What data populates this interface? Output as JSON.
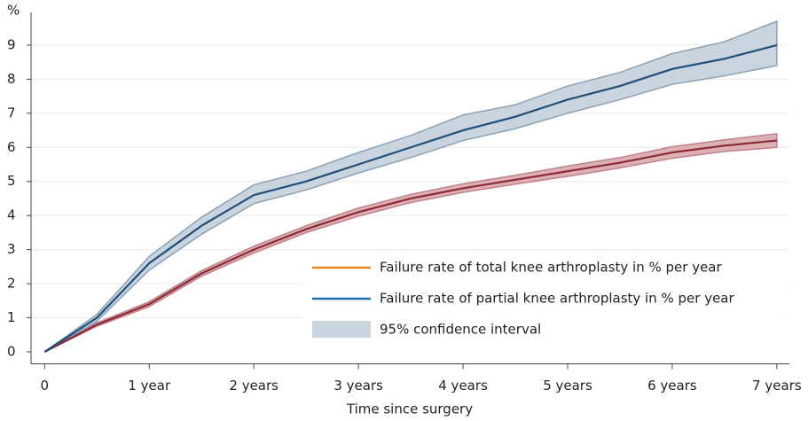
{
  "chart_data": {
    "type": "line",
    "y_label": "%",
    "x_label": "Time since surgery",
    "x": [
      0,
      0.5,
      1,
      1.5,
      2,
      2.5,
      3,
      3.5,
      4,
      4.5,
      5,
      5.5,
      6,
      6.5,
      7
    ],
    "series": [
      {
        "name": "Failure rate of total knee arthroplasty in % per year",
        "color": "#8b2a35",
        "legend_color": "#e08a1e",
        "band_color": "#dcb0b5",
        "band_edge": "#c08088",
        "values": [
          0,
          0.8,
          1.4,
          2.3,
          3.0,
          3.6,
          4.1,
          4.5,
          4.8,
          5.05,
          5.3,
          5.55,
          5.85,
          6.05,
          6.2
        ],
        "lower": [
          0,
          0.75,
          1.33,
          2.22,
          2.9,
          3.5,
          3.98,
          4.38,
          4.68,
          4.92,
          5.15,
          5.4,
          5.68,
          5.88,
          6.0
        ],
        "upper": [
          0,
          0.85,
          1.47,
          2.38,
          3.1,
          3.7,
          4.22,
          4.62,
          4.93,
          5.18,
          5.45,
          5.7,
          6.02,
          6.22,
          6.4
        ]
      },
      {
        "name": "Failure rate of partial knee arthroplasty in % per year",
        "color": "#1f4e79",
        "legend_color": "#1f6fa8",
        "band_color": "#c9d4df",
        "band_edge": "#8aa1b5",
        "values": [
          0,
          1.0,
          2.6,
          3.7,
          4.6,
          5.0,
          5.5,
          6.0,
          6.5,
          6.9,
          7.4,
          7.8,
          8.3,
          8.6,
          9.0
        ],
        "lower": [
          0,
          0.9,
          2.4,
          3.45,
          4.35,
          4.75,
          5.25,
          5.7,
          6.2,
          6.55,
          7.0,
          7.4,
          7.85,
          8.1,
          8.4
        ],
        "upper": [
          0,
          1.1,
          2.8,
          3.95,
          4.9,
          5.3,
          5.85,
          6.35,
          6.95,
          7.25,
          7.8,
          8.2,
          8.75,
          9.1,
          9.7
        ]
      }
    ],
    "ci_label": "95% confidence interval",
    "ci_color": "#c9d4df",
    "xlim": [
      -0.13,
      7.12
    ],
    "ylim": [
      -0.3,
      9.7
    ],
    "xticks": [
      0,
      {
        "value": 1,
        "label": "1 year"
      },
      {
        "value": 2,
        "label": "2 years"
      },
      {
        "value": 3,
        "label": "3 years"
      },
      {
        "value": 4,
        "label": "4 years"
      },
      {
        "value": 5,
        "label": "5 years"
      },
      {
        "value": 6,
        "label": "6 years"
      },
      {
        "value": 7,
        "label": "7 years"
      }
    ],
    "yticks": [
      0,
      1,
      2,
      3,
      4,
      5,
      6,
      7,
      8,
      9
    ],
    "grid": true
  }
}
